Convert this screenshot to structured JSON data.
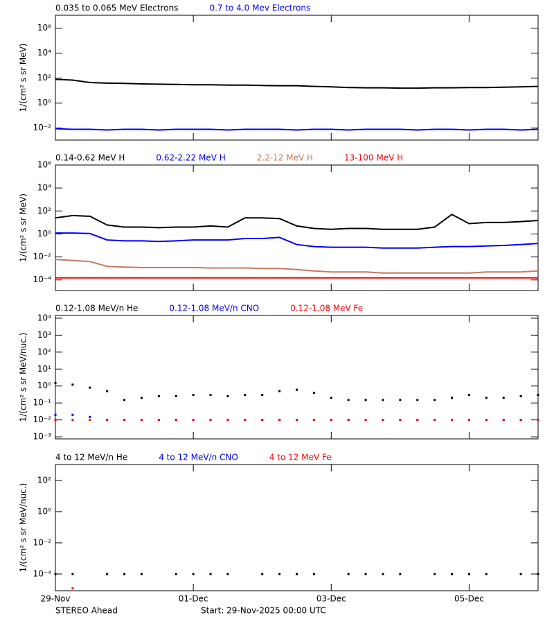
{
  "chart_data": [
    {
      "type": "line",
      "ylabel": "1/(cm² s sr MeV)",
      "ylog": true,
      "x": [
        0,
        0.25,
        0.5,
        0.75,
        1,
        1.25,
        1.5,
        1.75,
        2,
        2.25,
        2.5,
        2.75,
        3,
        3.25,
        3.5,
        3.75,
        4,
        4.25,
        4.5,
        4.75,
        5,
        5.25,
        5.5,
        5.75,
        6,
        6.25,
        6.5,
        6.75,
        7
      ],
      "xlim": [
        0,
        7
      ],
      "xticks": [
        0,
        2,
        4,
        6
      ],
      "ylim": [
        0.0011,
        11000000
      ],
      "yticks": [
        {
          "value": 0.01,
          "label": "10⁻²"
        },
        {
          "value": 1,
          "label": "10⁰"
        },
        {
          "value": 100,
          "label": "10²"
        },
        {
          "value": 10000,
          "label": "10⁴"
        },
        {
          "value": 1000000,
          "label": "10⁶"
        }
      ],
      "series": [
        {
          "name": "0.035 to 0.065 MeV Electrons",
          "color": "#000000",
          "values": [
            80,
            70,
            45,
            40,
            38,
            35,
            33,
            32,
            30,
            30,
            28,
            28,
            26,
            25,
            25,
            22,
            20,
            18,
            17,
            17,
            16,
            16,
            17,
            17,
            18,
            18,
            19,
            20,
            22
          ]
        },
        {
          "name": "0.7 to 4.0 Mev Electrons",
          "color": "#0000ff",
          "values": [
            0.009,
            0.008,
            0.008,
            0.007,
            0.008,
            0.008,
            0.007,
            0.008,
            0.008,
            0.008,
            0.007,
            0.008,
            0.008,
            0.008,
            0.007,
            0.008,
            0.008,
            0.007,
            0.008,
            0.008,
            0.008,
            0.007,
            0.008,
            0.008,
            0.007,
            0.008,
            0.008,
            0.007,
            0.008
          ]
        }
      ]
    },
    {
      "type": "line",
      "ylabel": "1/(cm² s sr MeV)",
      "ylog": true,
      "x": [
        0,
        0.25,
        0.5,
        0.75,
        1,
        1.25,
        1.5,
        1.75,
        2,
        2.25,
        2.5,
        2.75,
        3,
        3.25,
        3.5,
        3.75,
        4,
        4.25,
        4.5,
        4.75,
        5,
        5.25,
        5.5,
        5.75,
        6,
        6.25,
        6.5,
        6.75,
        7
      ],
      "xlim": [
        0,
        7
      ],
      "xticks": [
        0,
        2,
        4,
        6
      ],
      "ylim": [
        1.2e-05,
        1000000
      ],
      "yticks": [
        {
          "value": 0.0001,
          "label": "10⁻⁴"
        },
        {
          "value": 0.01,
          "label": "10⁻²"
        },
        {
          "value": 1,
          "label": "10⁰"
        },
        {
          "value": 100,
          "label": "10²"
        },
        {
          "value": 10000,
          "label": "10⁴"
        },
        {
          "value": 1000000,
          "label": "10⁶"
        }
      ],
      "series": [
        {
          "name": "0.14-0.62 MeV H",
          "color": "#000000",
          "values": [
            25,
            40,
            35,
            6,
            4,
            4,
            3.5,
            4,
            4,
            5,
            4,
            25,
            25,
            22,
            5,
            3,
            2.5,
            3,
            3,
            2.5,
            2.5,
            2.5,
            4,
            50,
            8,
            10,
            10,
            12,
            15
          ]
        },
        {
          "name": "0.62-2.22 MeV H",
          "color": "#0000ff",
          "values": [
            1.2,
            1.2,
            1.1,
            0.3,
            0.25,
            0.25,
            0.22,
            0.25,
            0.3,
            0.3,
            0.3,
            0.4,
            0.4,
            0.5,
            0.12,
            0.08,
            0.07,
            0.07,
            0.07,
            0.06,
            0.06,
            0.06,
            0.07,
            0.08,
            0.08,
            0.09,
            0.1,
            0.12,
            0.15
          ]
        },
        {
          "name": "2.2-12 MeV H",
          "color": "#c87860",
          "values": [
            0.006,
            0.005,
            0.004,
            0.0015,
            0.0013,
            0.0012,
            0.0012,
            0.0012,
            0.0012,
            0.0011,
            0.0011,
            0.0011,
            0.001,
            0.001,
            0.0008,
            0.0006,
            0.0005,
            0.0005,
            0.0005,
            0.0004,
            0.0004,
            0.0004,
            0.0004,
            0.0004,
            0.0004,
            0.0005,
            0.0005,
            0.0005,
            0.0006
          ]
        },
        {
          "name": "13-100 MeV H",
          "color": "#ff0000",
          "values": [
            0.00015,
            0.00015,
            0.00015,
            0.00015,
            0.00015,
            0.00015,
            0.00015,
            0.00015,
            0.00015,
            0.00015,
            0.00015,
            0.00015,
            0.00015,
            0.00015,
            0.00015,
            0.00015,
            0.00015,
            0.00015,
            0.00015,
            0.00015,
            0.00015,
            0.00015,
            0.00015,
            0.00015,
            0.00015,
            0.00015,
            0.00015,
            0.00015,
            0.00015
          ]
        }
      ]
    },
    {
      "type": "scatter",
      "ylabel": "1/(cm² s sr MeV/nuc.)",
      "ylog": true,
      "x": [
        0,
        0.25,
        0.5,
        0.75,
        1,
        1.25,
        1.5,
        1.75,
        2,
        2.25,
        2.5,
        2.75,
        3,
        3.25,
        3.5,
        3.75,
        4,
        4.25,
        4.5,
        4.75,
        5,
        5.25,
        5.5,
        5.75,
        6,
        6.25,
        6.5,
        6.75,
        7
      ],
      "xlim": [
        0,
        7
      ],
      "xticks": [
        0,
        2,
        4,
        6
      ],
      "ylim": [
        0.00076,
        14500
      ],
      "yticks": [
        {
          "value": 0.001,
          "label": "10⁻³"
        },
        {
          "value": 0.01,
          "label": "10⁻²"
        },
        {
          "value": 0.1,
          "label": "10⁻¹"
        },
        {
          "value": 1,
          "label": "10⁰"
        },
        {
          "value": 10,
          "label": "10¹"
        },
        {
          "value": 100,
          "label": "10²"
        },
        {
          "value": 1000,
          "label": "10³"
        },
        {
          "value": 10000,
          "label": "10⁴"
        }
      ],
      "series": [
        {
          "name": "0.12-1.08 MeV/n He",
          "color": "#000000",
          "values": [
            1.5,
            1.2,
            0.8,
            0.5,
            0.15,
            0.2,
            0.25,
            0.25,
            0.3,
            0.3,
            0.25,
            0.3,
            0.3,
            0.5,
            0.6,
            0.4,
            0.2,
            0.15,
            0.15,
            0.15,
            0.15,
            0.15,
            0.15,
            0.2,
            0.3,
            0.2,
            0.2,
            0.25,
            0.3
          ]
        },
        {
          "name": "0.12-1.08 MeV/n CNO",
          "color": "#0000ff",
          "values": [
            0.02,
            0.02,
            0.015,
            0.01,
            0.01,
            0.01,
            0.01,
            0.01,
            0.01,
            0.01,
            0.01,
            0.01,
            0.01,
            0.01,
            0.01,
            0.01,
            0.01,
            0.01,
            0.01,
            0.01,
            0.01,
            0.01,
            0.01,
            0.01,
            0.01,
            0.01,
            0.01,
            0.01,
            0.01
          ]
        },
        {
          "name": "0.12-1.08 MeV Fe",
          "color": "#ff0000",
          "values": [
            0.01,
            0.01,
            0.01,
            0.01,
            0.01,
            0.01,
            0.01,
            0.01,
            0.01,
            0.01,
            0.01,
            0.01,
            0.01,
            0.01,
            0.01,
            0.01,
            0.01,
            0.01,
            0.01,
            0.01,
            0.01,
            0.01,
            0.01,
            0.01,
            0.01,
            0.01,
            0.01,
            0.01,
            0.01
          ]
        }
      ]
    },
    {
      "type": "scatter",
      "ylabel": "1/(cm² s sr MeV/nuc.)",
      "ylog": true,
      "x": [
        0,
        0.25,
        0.5,
        0.75,
        1,
        1.25,
        1.5,
        1.75,
        2,
        2.25,
        2.5,
        2.75,
        3,
        3.25,
        3.5,
        3.75,
        4,
        4.25,
        4.5,
        4.75,
        5,
        5.25,
        5.5,
        5.75,
        6,
        6.25,
        6.5,
        6.75,
        7
      ],
      "xlim": [
        0,
        7
      ],
      "xticks": [
        {
          "value": 0,
          "label": "29-Nov"
        },
        {
          "value": 2,
          "label": "01-Dec"
        },
        {
          "value": 4,
          "label": "03-Dec"
        },
        {
          "value": 6,
          "label": "05-Dec"
        }
      ],
      "ylim": [
        8.5e-06,
        1050
      ],
      "yticks": [
        {
          "value": 0.0001,
          "label": "10⁻⁴"
        },
        {
          "value": 0.01,
          "label": "10⁻²"
        },
        {
          "value": 1,
          "label": "10⁰"
        },
        {
          "value": 100,
          "label": "10²"
        }
      ],
      "series": [
        {
          "name": "4 to 12 MeV/n He",
          "color": "#000000",
          "values": [
            0.0001,
            0.0001,
            null,
            0.0001,
            0.0001,
            0.0001,
            null,
            0.0001,
            0.0001,
            0.0001,
            0.0001,
            null,
            0.0001,
            0.0001,
            0.0001,
            0.0001,
            null,
            0.0001,
            0.0001,
            0.0001,
            0.0001,
            null,
            0.0001,
            0.0001,
            0.0001,
            0.0001,
            null,
            0.0001,
            0.0001
          ]
        },
        {
          "name": "4 to 12 MeV/n CNO",
          "color": "#0000ff",
          "values": [
            null,
            null,
            null,
            null,
            null,
            null,
            null,
            null,
            null,
            null,
            null,
            null,
            null,
            null,
            null,
            null,
            null,
            null,
            null,
            null,
            null,
            null,
            null,
            null,
            null,
            null,
            null,
            null,
            null
          ]
        },
        {
          "name": "4 to 12 MeV Fe",
          "color": "#ff0000",
          "values": [
            null,
            1.2e-05,
            null,
            null,
            null,
            null,
            null,
            null,
            null,
            null,
            null,
            null,
            null,
            null,
            null,
            null,
            null,
            null,
            null,
            null,
            null,
            null,
            null,
            null,
            null,
            null,
            null,
            null,
            null
          ]
        }
      ]
    }
  ],
  "footer": {
    "left": "STEREO Ahead",
    "right": "Start: 29-Nov-2025 00:00 UTC"
  }
}
